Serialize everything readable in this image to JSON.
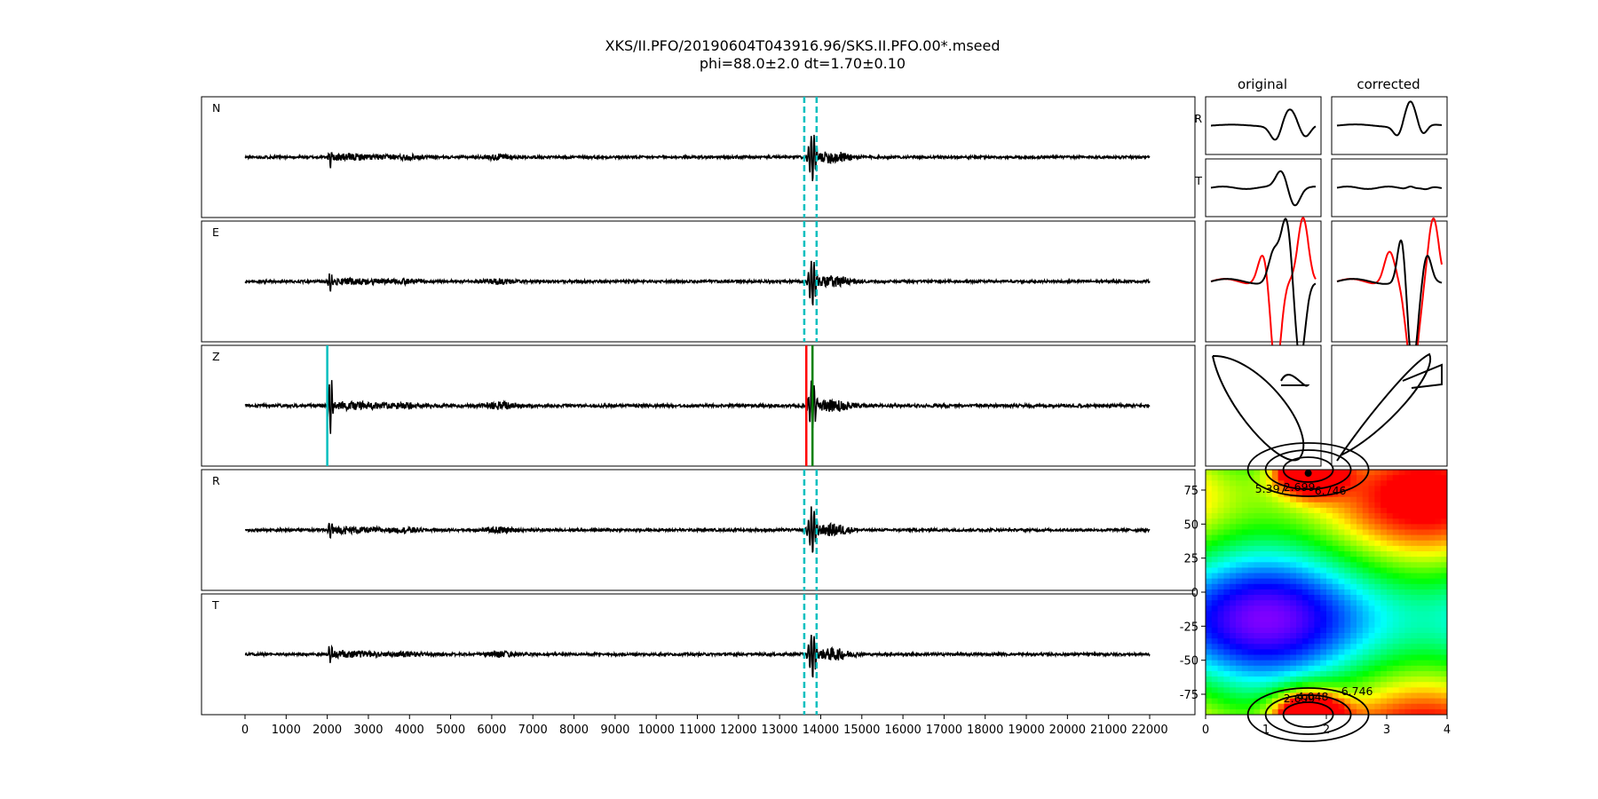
{
  "title_line1": "XKS/II.PFO/20190604T043916.96/SKS.II.PFO.00*.mseed",
  "title_line2": "phi=88.0±2.0 dt=1.70±0.10",
  "original_label": "original",
  "corrected_label": "corrected",
  "chart_data": [
    {
      "type": "line",
      "description": "Seismogram traces, 5 stacked panels sharing x axis",
      "x_range": [
        0,
        22000
      ],
      "xticks": [
        0,
        1000,
        2000,
        3000,
        4000,
        5000,
        6000,
        7000,
        8000,
        9000,
        10000,
        11000,
        12000,
        13000,
        14000,
        15000,
        16000,
        17000,
        18000,
        19000,
        20000,
        21000,
        22000
      ],
      "series": [
        {
          "name": "N",
          "color": "#000000"
        },
        {
          "name": "E",
          "color": "#000000"
        },
        {
          "name": "Z",
          "color": "#000000"
        },
        {
          "name": "R",
          "color": "#000000"
        },
        {
          "name": "T",
          "color": "#000000"
        }
      ],
      "window_markers": {
        "values": [
          13600,
          13900
        ],
        "style": "dashed",
        "color": "#00bfbf",
        "panels": [
          "N",
          "E",
          "R",
          "T"
        ]
      },
      "z_markers": [
        {
          "x": 2000,
          "color": "#00bfbf"
        },
        {
          "x": 13650,
          "color": "#ff0000"
        },
        {
          "x": 13800,
          "color": "#008000"
        }
      ]
    },
    {
      "type": "line",
      "description": "Windowed R and T components, original vs corrected",
      "row_labels": [
        "R",
        "T"
      ],
      "columns": [
        "original",
        "corrected"
      ]
    },
    {
      "type": "line",
      "description": "Particle motion waveforms, red and black overlaid",
      "colors": [
        "#ff0000",
        "#000000"
      ]
    },
    {
      "type": "scatter",
      "description": "Particle motion hodograms (original, corrected)"
    },
    {
      "type": "heatmap",
      "description": "Energy grid phi vs dt with contours",
      "x_range": [
        0,
        4
      ],
      "y_range": [
        -90,
        90
      ],
      "xticks": [
        0,
        1,
        2,
        3,
        4
      ],
      "yticks": [
        -75,
        -50,
        -25,
        0,
        25,
        50,
        75
      ],
      "contour_labels": [
        "2.699",
        "4.048",
        "5.397",
        "6.746"
      ],
      "best": {
        "dt": 1.7,
        "phi": 88
      }
    }
  ]
}
